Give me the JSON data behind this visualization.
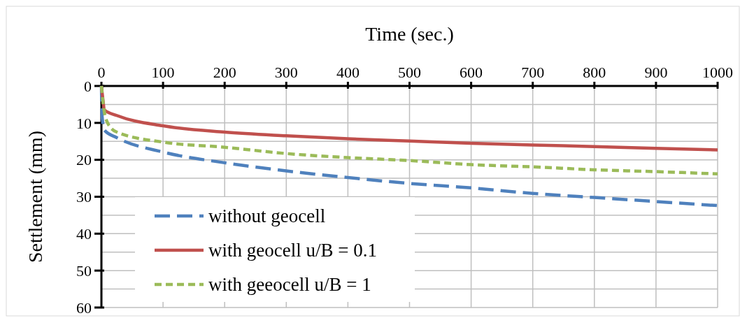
{
  "chart_data": {
    "type": "line",
    "xlabel": "Time (sec.)",
    "ylabel": "Settlement (mm)",
    "xlim": [
      0,
      1000
    ],
    "xticks": [
      0,
      100,
      200,
      300,
      400,
      500,
      600,
      700,
      800,
      900,
      1000
    ],
    "ylim": [
      60,
      0
    ],
    "yticks": [
      0,
      {
        "value": 5,
        "label": null
      },
      10,
      {
        "value": 15,
        "label": null
      },
      20,
      {
        "value": 25,
        "label": null
      },
      30,
      {
        "value": 35,
        "label": null
      },
      40,
      {
        "value": 45,
        "label": null
      },
      50,
      {
        "value": 55,
        "label": null
      },
      60
    ],
    "grid": true,
    "legend": "bottom left",
    "marker": "none",
    "series": [
      {
        "name": "without geocell",
        "color": "#4f81bd",
        "line_style": "dashed",
        "x": [
          0,
          1,
          5,
          25,
          100,
          200,
          300,
          400,
          500,
          600,
          700,
          800,
          900,
          1000
        ],
        "values": [
          0,
          8,
          12,
          14,
          17.9,
          20.8,
          23,
          24.8,
          26.4,
          27.6,
          29.1,
          30.2,
          31.3,
          32.4
        ]
      },
      {
        "name": "with geocell u/B = 0.1",
        "color": "#c0504d",
        "line_style": "solid",
        "x": [
          0,
          2,
          5,
          25,
          100,
          200,
          300,
          400,
          500,
          600,
          700,
          800,
          900,
          1000
        ],
        "values": [
          0,
          3,
          6.5,
          8,
          10.8,
          12.5,
          13.5,
          14.3,
          14.9,
          15.5,
          16,
          16.4,
          16.9,
          17.3
        ]
      },
      {
        "name": "with geeocell u/B = 1",
        "color": "#9bbb59",
        "line_style": "dotted",
        "x": [
          0,
          3,
          10,
          25,
          100,
          200,
          300,
          400,
          500,
          600,
          700,
          800,
          900,
          1000
        ],
        "values": [
          0,
          5,
          10,
          12.5,
          15.2,
          16.6,
          18.3,
          19.4,
          20.2,
          21.3,
          21.9,
          22.7,
          23.2,
          23.8
        ]
      }
    ]
  }
}
